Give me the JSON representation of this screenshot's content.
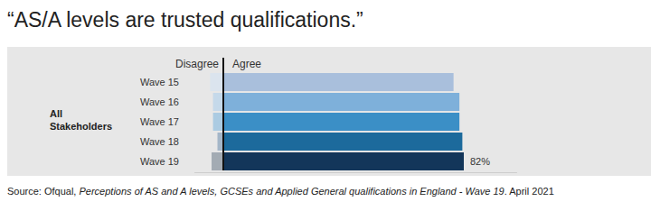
{
  "chart_data": {
    "type": "bar",
    "orientation": "horizontal",
    "stacked": true,
    "title": "“AS/A levels are trusted qualifications.”",
    "ylabel": "All Stakeholders",
    "categories": [
      "Wave 15",
      "Wave 16",
      "Wave 17",
      "Wave 18",
      "Wave 19"
    ],
    "series": [
      {
        "name": "Disagree",
        "colors": [
          "#dbe4ee",
          "#c5d9ea",
          "#abcbe2",
          "#a4b6c8",
          "#a3abb3"
        ],
        "values": [
          -4.5,
          -3.5,
          -3.5,
          -2,
          -4
        ]
      },
      {
        "name": "Agree",
        "colors": [
          "#a9bfdc",
          "#7eb0da",
          "#3b8fc6",
          "#1c6a9c",
          "#13365a"
        ],
        "values": [
          78.5,
          80.5,
          80.5,
          81.5,
          82
        ],
        "value_labels": [
          null,
          null,
          null,
          null,
          "82%"
        ]
      }
    ],
    "xlim": [
      -10,
      100
    ],
    "xticks": [
      0
    ],
    "tick_labels": false,
    "data_labels": true,
    "source": [
      "Source: Ofqual, ",
      "Perceptions of AS and A levels, GCSEs and Applied General qualifications in England - Wave 19",
      ". April 2021"
    ]
  }
}
